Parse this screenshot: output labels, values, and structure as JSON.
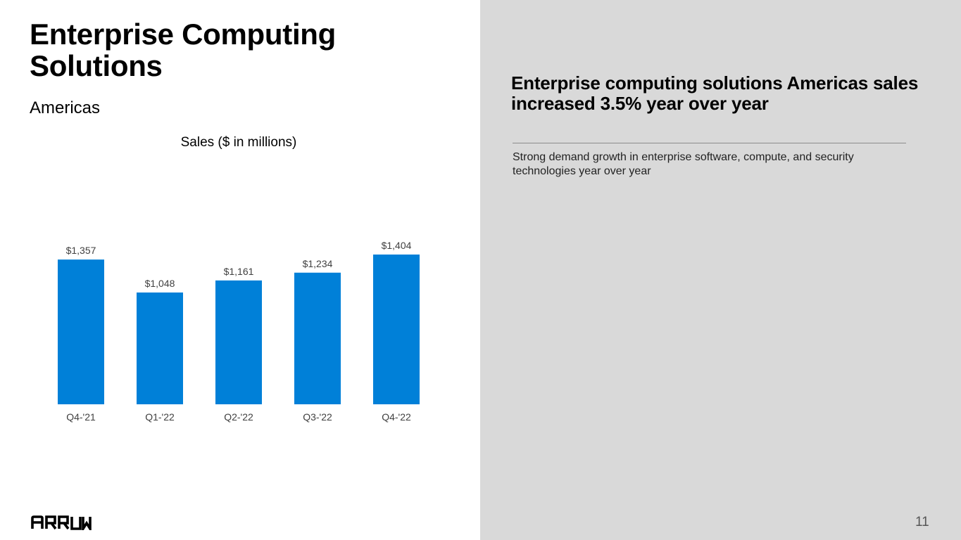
{
  "slide": {
    "title": "Enterprise Computing Solutions",
    "subtitle": "Americas",
    "headline": "Enterprise computing solutions Americas sales increased 3.5% year over year",
    "body": "Strong demand growth in enterprise software, compute, and security technologies year over year",
    "page_number": "11",
    "logo_text": "ARROW",
    "colors": {
      "bar": "#0080d8",
      "right_panel": "#d9d9d9"
    }
  },
  "chart_data": {
    "type": "bar",
    "title": "Sales ($ in millions)",
    "categories": [
      "Q4-'21",
      "Q1-'22",
      "Q2-'22",
      "Q3-'22",
      "Q4-'22"
    ],
    "values": [
      1357,
      1048,
      1161,
      1234,
      1404
    ],
    "value_labels": [
      "$1,357",
      "$1,048",
      "$1,161",
      "$1,234",
      "$1,404"
    ],
    "xlabel": "",
    "ylabel": "",
    "ylim": [
      0,
      1404
    ],
    "grid": false,
    "legend": "none"
  }
}
